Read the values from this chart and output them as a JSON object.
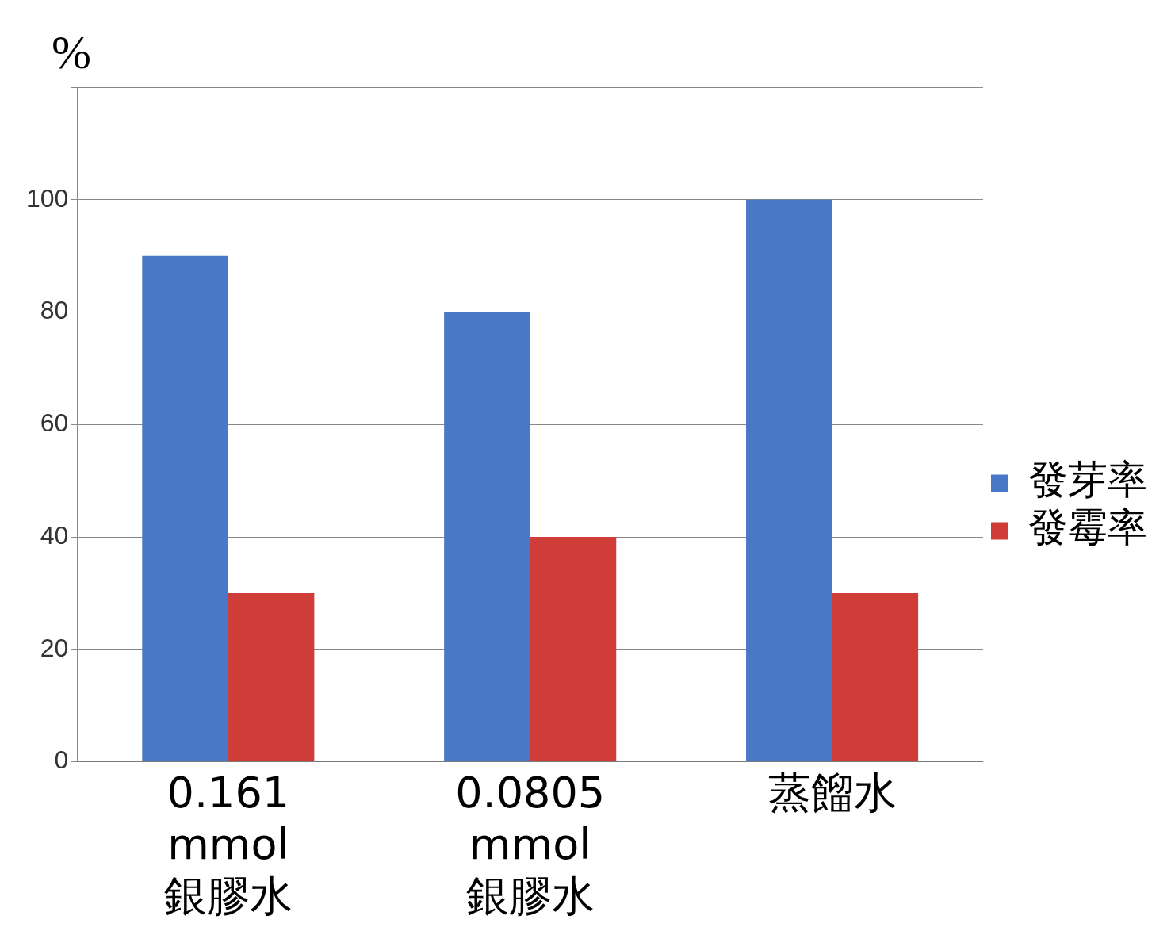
{
  "chart_data": {
    "type": "bar",
    "ylabel": "%",
    "categories": [
      "0.161 mmol 銀膠水",
      "0.0805 mmol 銀膠水",
      "蒸餾水"
    ],
    "series": [
      {
        "name": "發芽率",
        "color": "#4a78c8",
        "values": [
          90,
          80,
          100
        ]
      },
      {
        "name": "發霉率",
        "color": "#d03c38",
        "values": [
          30,
          40,
          30
        ]
      }
    ],
    "ylim": [
      0,
      120
    ],
    "yticks": [
      0,
      20,
      40,
      60,
      80,
      100,
      {
        "value": 120,
        "label": null
      }
    ],
    "grid": "y",
    "legend": "right"
  }
}
